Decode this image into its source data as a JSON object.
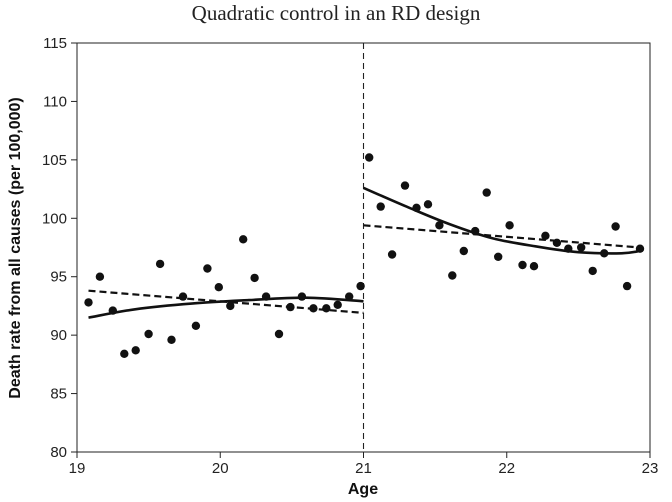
{
  "chart_data": {
    "type": "scatter",
    "title": "Quadratic control in an RD design",
    "xlabel": "Age",
    "ylabel": "Death rate from all causes (per 100,000)",
    "xlim": [
      19,
      23
    ],
    "ylim": [
      80,
      115
    ],
    "xticks": [
      19,
      20,
      21,
      22,
      23
    ],
    "yticks": [
      80,
      85,
      90,
      95,
      100,
      105,
      110,
      115
    ],
    "cutoff": 21,
    "grid": false,
    "points": {
      "x": [
        19.08,
        19.16,
        19.25,
        19.33,
        19.41,
        19.5,
        19.58,
        19.66,
        19.74,
        19.83,
        19.91,
        19.99,
        20.07,
        20.16,
        20.24,
        20.32,
        20.41,
        20.49,
        20.57,
        20.65,
        20.74,
        20.82,
        20.9,
        20.98,
        21.04,
        21.12,
        21.2,
        21.29,
        21.37,
        21.45,
        21.53,
        21.62,
        21.7,
        21.78,
        21.86,
        21.94,
        22.02,
        22.11,
        22.19,
        22.27,
        22.35,
        22.43,
        22.52,
        22.6,
        22.68,
        22.76,
        22.84,
        22.93
      ],
      "y": [
        92.8,
        95.0,
        92.1,
        88.4,
        88.7,
        90.1,
        96.1,
        89.6,
        93.3,
        90.8,
        95.7,
        94.1,
        92.5,
        98.2,
        94.9,
        93.3,
        90.1,
        92.4,
        93.3,
        92.3,
        92.3,
        92.6,
        93.3,
        94.2,
        105.2,
        101.0,
        96.9,
        102.8,
        100.9,
        101.2,
        99.4,
        95.1,
        97.2,
        98.9,
        102.2,
        96.7,
        99.4,
        96.0,
        95.9,
        98.5,
        97.9,
        97.4,
        97.5,
        95.5,
        97.0,
        99.3,
        94.2,
        97.4
      ]
    },
    "series": [
      {
        "style": "quadratic-left",
        "x": [
          19.08,
          19.4,
          19.8,
          20.2,
          20.6,
          21.0
        ],
        "y": [
          91.5,
          92.2,
          92.7,
          93.0,
          93.2,
          92.9
        ]
      },
      {
        "style": "linear-left",
        "x": [
          19.08,
          21.0
        ],
        "y": [
          93.8,
          91.9
        ]
      },
      {
        "style": "quadratic-right",
        "x": [
          21.0,
          21.3,
          21.6,
          21.9,
          22.2,
          22.5,
          22.8,
          22.93
        ],
        "y": [
          102.6,
          101.0,
          99.5,
          98.3,
          97.6,
          97.1,
          97.0,
          97.2
        ]
      },
      {
        "style": "linear-right",
        "x": [
          21.0,
          22.93
        ],
        "y": [
          99.4,
          97.5
        ]
      }
    ]
  }
}
